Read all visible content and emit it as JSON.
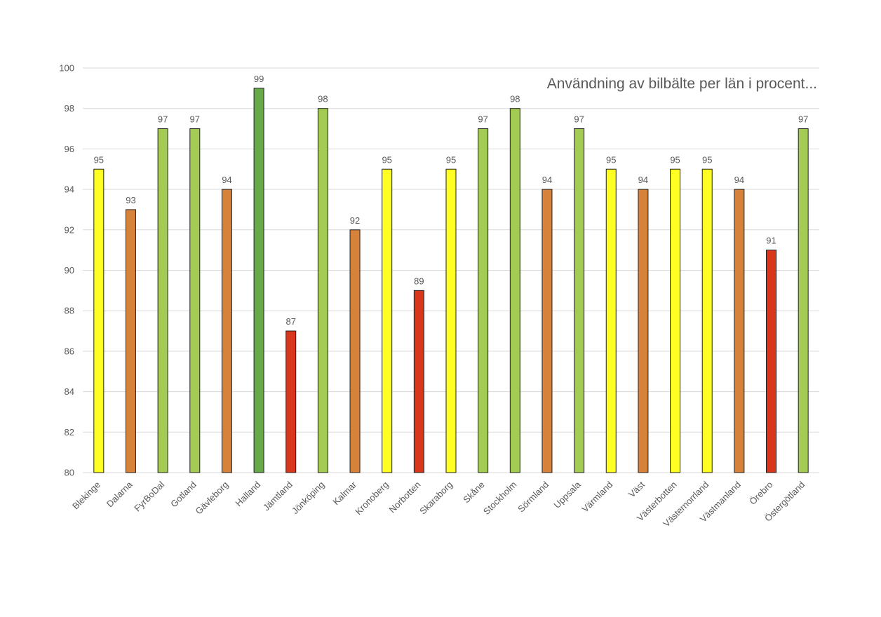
{
  "chart_data": {
    "type": "bar",
    "title": "Användning av bilbälte per län i procent...",
    "xlabel": "",
    "ylabel": "",
    "ylim": [
      80,
      100
    ],
    "ytick_step": 2,
    "grid": true,
    "legend": "none",
    "categories": [
      "Blekinge",
      "Dalarna",
      "FyrBoDal",
      "Gotland",
      "Gävleborg",
      "Halland",
      "Jämtland",
      "Jönköping",
      "Kalmar",
      "Kronoberg",
      "Norbotten",
      "Skaraborg",
      "Skåne",
      "Stockholm",
      "Sörmland",
      "Uppsala",
      "Värmland",
      "Väst",
      "Västerbotten",
      "Västernorrland",
      "Västmanland",
      "Örebro",
      "Östergötland"
    ],
    "values": [
      95,
      93,
      97,
      97,
      94,
      99,
      87,
      98,
      92,
      95,
      89,
      95,
      97,
      98,
      94,
      97,
      95,
      94,
      95,
      95,
      94,
      91,
      97
    ],
    "colors": [
      "#ffff24",
      "#d7823a",
      "#a4cb54",
      "#a4cb54",
      "#d7823a",
      "#67aa4b",
      "#d8371c",
      "#a4cb54",
      "#d7823a",
      "#ffff24",
      "#d8371c",
      "#ffff24",
      "#a4cb54",
      "#a4cb54",
      "#d7823a",
      "#a4cb54",
      "#ffff24",
      "#d7823a",
      "#ffff24",
      "#ffff24",
      "#d7823a",
      "#d8371c",
      "#a4cb54"
    ]
  }
}
